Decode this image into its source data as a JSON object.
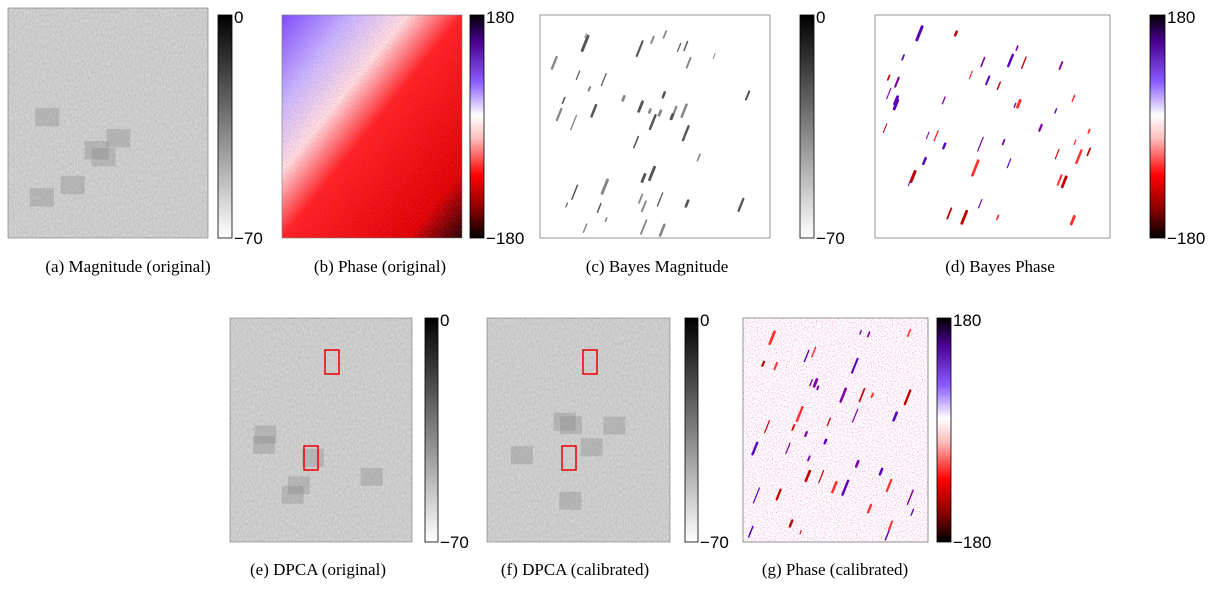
{
  "panels": [
    {
      "caption": "(a)  Magnitude (original)",
      "cbar_max": "0",
      "cbar_min": "−70"
    },
    {
      "caption": "(b)  Phase (original)",
      "cbar_max": "180",
      "cbar_min": "−180"
    },
    {
      "caption": "(c)  Bayes Magnitude",
      "cbar_max": "0",
      "cbar_min": "−70"
    },
    {
      "caption": "(d)  Bayes Phase",
      "cbar_max": "180",
      "cbar_min": "−180"
    },
    {
      "caption": "(e)  DPCA (original)",
      "cbar_max": "0",
      "cbar_min": "−70"
    },
    {
      "caption": "(f)  DPCA (calibrated)",
      "cbar_max": "0",
      "cbar_min": "−70"
    },
    {
      "caption": "(g)  Phase (calibrated)",
      "cbar_max": "180",
      "cbar_min": "−180"
    }
  ]
}
